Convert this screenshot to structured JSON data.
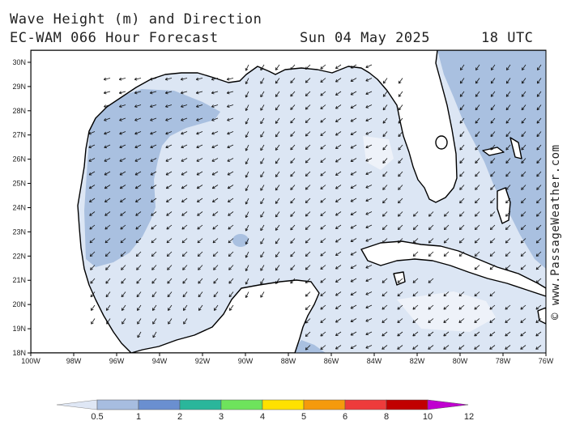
{
  "title_line1": "Wave Height (m) and Direction",
  "title_line2": "EC-WAM 066 Hour Forecast",
  "forecast_date": "Sun 04 May 2025",
  "forecast_time": "18 UTC",
  "credit": "© www.PassageWeather.com",
  "map": {
    "lon_range": [
      -100,
      -76
    ],
    "lat_range": [
      18,
      30.5
    ],
    "lon_labels": [
      "100W",
      "98W",
      "96W",
      "94W",
      "92W",
      "90W",
      "88W",
      "86W",
      "84W",
      "82W",
      "80W",
      "78W",
      "76W"
    ],
    "lat_labels": [
      "18N",
      "19N",
      "20N",
      "21N",
      "22N",
      "23N",
      "24N",
      "25N",
      "26N",
      "27N",
      "28N",
      "29N",
      "30N"
    ],
    "land_color": "#ffffff",
    "sea_low_color": "#dce6f4",
    "sea_mid_color": "#a9c0e0"
  },
  "legend": {
    "labels": [
      "0.5",
      "1",
      "2",
      "3",
      "4",
      "5",
      "6",
      "8",
      "10",
      "12"
    ],
    "colors": [
      "#dfe7f5",
      "#a7bde0",
      "#6a8fd0",
      "#2ab69b",
      "#6ee35c",
      "#ffe100",
      "#f59a0c",
      "#ee3b3b",
      "#c10000",
      "#c000d0"
    ]
  }
}
